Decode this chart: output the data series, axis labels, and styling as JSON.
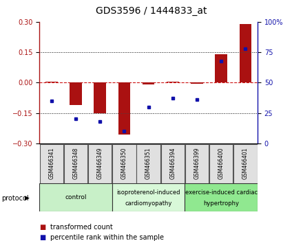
{
  "title": "GDS3596 / 1444833_at",
  "samples": [
    "GSM466341",
    "GSM466348",
    "GSM466349",
    "GSM466350",
    "GSM466351",
    "GSM466394",
    "GSM466399",
    "GSM466400",
    "GSM466401"
  ],
  "transformed_count": [
    0.005,
    -0.11,
    -0.15,
    -0.255,
    -0.01,
    0.005,
    -0.005,
    0.14,
    0.29
  ],
  "percentile_rank": [
    35,
    20,
    18,
    10,
    30,
    37,
    36,
    68,
    78
  ],
  "ylim_left": [
    -0.3,
    0.3
  ],
  "ylim_right": [
    0,
    100
  ],
  "yticks_left": [
    -0.3,
    -0.15,
    0,
    0.15,
    0.3
  ],
  "yticks_right": [
    0,
    25,
    50,
    75,
    100
  ],
  "groups": [
    {
      "label": "control",
      "start": 0,
      "end": 3,
      "color": "#c8f0c8"
    },
    {
      "label": "isoproterenol-induced\ncardiomyopathy",
      "start": 3,
      "end": 6,
      "color": "#d8f8d8"
    },
    {
      "label": "exercise-induced cardiac\nhypertrophy",
      "start": 6,
      "end": 9,
      "color": "#90e890"
    }
  ],
  "bar_color": "#aa1111",
  "dot_color": "#1111aa",
  "zeroline_color": "#cc1111",
  "grid_color": "#444444",
  "bg_color": "#ffffff",
  "panel_bg": "#e0e0e0",
  "title_fontsize": 10,
  "tick_fontsize": 7,
  "label_fontsize": 7.5
}
